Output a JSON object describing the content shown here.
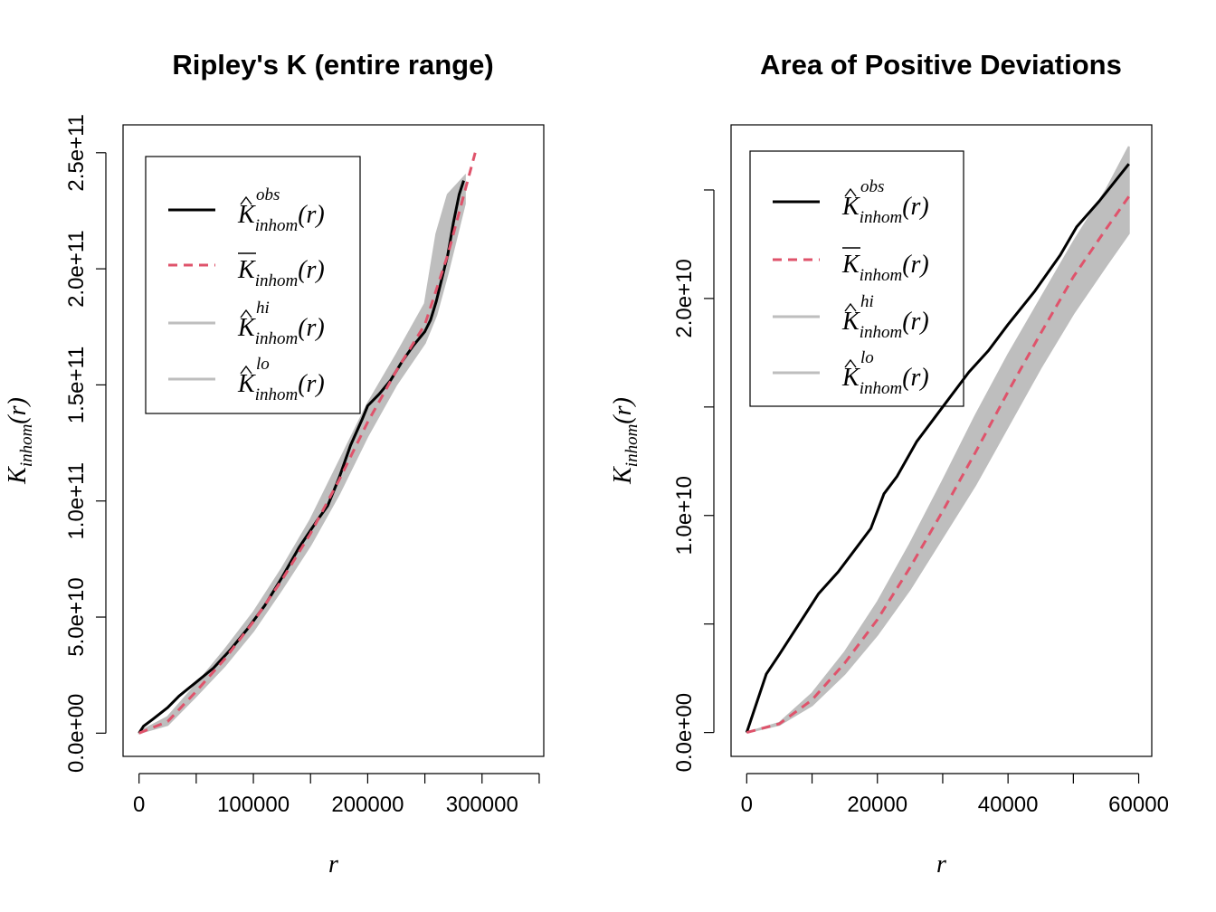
{
  "colors": {
    "obs": "#000000",
    "theo": "#DF536B",
    "band": "#BEBEBE"
  },
  "legend": {
    "items": [
      {
        "base": "K",
        "sup": "obs",
        "sub": "inhom",
        "arg": "(r)",
        "mark": "hat",
        "style": "solid",
        "color": "#000000"
      },
      {
        "base": "K",
        "sup": "",
        "sub": "inhom",
        "arg": "(r)",
        "mark": "bar",
        "style": "dashed",
        "color": "#DF536B"
      },
      {
        "base": "K",
        "sup": "hi",
        "sub": "inhom",
        "arg": "(r)",
        "mark": "hat",
        "style": "solid",
        "color": "#BEBEBE"
      },
      {
        "base": "K",
        "sup": "lo",
        "sub": "inhom",
        "arg": "(r)",
        "mark": "hat",
        "style": "solid",
        "color": "#BEBEBE"
      }
    ],
    "placement": "top-left"
  },
  "chart_data": [
    {
      "type": "line",
      "title": "Ripley's K (entire range)",
      "xlabel": "r",
      "ylabel": {
        "base": "K",
        "sub": "inhom",
        "arg": "(r)"
      },
      "xlim": [
        -14000,
        354000
      ],
      "ylim": [
        -10000000000,
        262000000000
      ],
      "xticks": [
        0,
        50000,
        100000,
        150000,
        200000,
        250000,
        300000,
        350000
      ],
      "xtick_labels": [
        "0",
        "100000",
        "200000",
        "300000"
      ],
      "xtick_label_values": [
        0,
        100000,
        200000,
        300000
      ],
      "yticks": [
        0,
        50000000000,
        100000000000,
        150000000000,
        200000000000,
        250000000000
      ],
      "ytick_labels": [
        "0.0e+00",
        "5.0e+10",
        "1.0e+11",
        "1.5e+11",
        "2.0e+11",
        "2.5e+11"
      ],
      "grid": false,
      "series": [
        {
          "name": "obs",
          "style": "solid",
          "x": [
            0,
            4000,
            12000,
            25000,
            35000,
            50000,
            65000,
            80000,
            95000,
            110000,
            125000,
            140000,
            155000,
            165000,
            175000,
            185000,
            195000,
            200000,
            210000,
            220000,
            230000,
            240000,
            250000,
            255000,
            260000,
            265000,
            270000,
            275000,
            280000,
            284000
          ],
          "y": [
            0,
            3000000000,
            6000000000,
            11000000000,
            16000000000,
            22000000000,
            28000000000,
            36000000000,
            45000000000,
            55000000000,
            67000000000,
            80000000000,
            91000000000,
            98000000000,
            110000000000,
            124000000000,
            135000000000,
            141000000000,
            146000000000,
            152000000000,
            160000000000,
            167000000000,
            173000000000,
            178000000000,
            186000000000,
            196000000000,
            206000000000,
            220000000000,
            232000000000,
            238000000000
          ]
        },
        {
          "name": "theo",
          "style": "dashed",
          "x": [
            0,
            25000,
            50000,
            75000,
            100000,
            125000,
            150000,
            175000,
            200000,
            225000,
            250000,
            270000,
            294000
          ],
          "y": [
            0,
            5000000000,
            18000000000,
            32000000000,
            48000000000,
            66000000000,
            86000000000,
            109000000000,
            134000000000,
            156000000000,
            176000000000,
            206000000000,
            250000000000
          ]
        },
        {
          "name": "hi",
          "style": "band",
          "x": [
            0,
            25000,
            50000,
            75000,
            100000,
            125000,
            150000,
            175000,
            200000,
            225000,
            250000,
            260000,
            270000,
            285000
          ],
          "y": [
            500000000,
            7000000000,
            21000000000,
            36000000000,
            52000000000,
            71000000000,
            92000000000,
            117000000000,
            142000000000,
            163000000000,
            185000000000,
            215000000000,
            232000000000,
            240000000000
          ]
        },
        {
          "name": "lo",
          "style": "band",
          "x": [
            0,
            25000,
            50000,
            75000,
            100000,
            125000,
            150000,
            175000,
            200000,
            225000,
            250000,
            260000,
            270000,
            285000
          ],
          "y": [
            0,
            3500000000,
            16000000000,
            29000000000,
            44000000000,
            62000000000,
            81000000000,
            103000000000,
            128000000000,
            150000000000,
            168000000000,
            180000000000,
            198000000000,
            228000000000
          ]
        }
      ]
    },
    {
      "type": "line",
      "title": "Area of Positive Deviations",
      "xlabel": "r",
      "ylabel": {
        "base": "K",
        "sub": "inhom",
        "arg": "(r)"
      },
      "xlim": [
        -2400,
        62000
      ],
      "ylim": [
        -1100000000,
        28000000000
      ],
      "xticks": [
        0,
        10000,
        20000,
        30000,
        40000,
        50000,
        60000
      ],
      "xtick_labels": [
        "0",
        "20000",
        "40000",
        "60000"
      ],
      "xtick_label_values": [
        0,
        20000,
        40000,
        60000
      ],
      "yticks": [
        0,
        5000000000,
        10000000000,
        15000000000,
        20000000000,
        25000000000
      ],
      "ytick_labels": [
        "0.0e+00",
        "",
        "1.0e+10",
        "",
        "2.0e+10",
        ""
      ],
      "grid": false,
      "series": [
        {
          "name": "obs",
          "style": "solid",
          "x": [
            0,
            3000,
            5000,
            8000,
            11000,
            14000,
            17000,
            19000,
            21000,
            23000,
            26000,
            30000,
            34000,
            37000,
            40000,
            44000,
            48000,
            50500,
            54000,
            58500
          ],
          "y": [
            0,
            2700000000,
            3600000000,
            5000000000,
            6400000000,
            7400000000,
            8600000000,
            9400000000,
            11000000000,
            11800000000,
            13400000000,
            15000000000,
            16600000000,
            17600000000,
            18800000000,
            20300000000,
            22000000000,
            23300000000,
            24500000000,
            26200000000
          ]
        },
        {
          "name": "theo",
          "style": "dashed",
          "x": [
            0,
            5000,
            10000,
            15000,
            20000,
            25000,
            30000,
            35000,
            40000,
            45000,
            50000,
            55000,
            58500
          ],
          "y": [
            0,
            400000000,
            1500000000,
            3200000000,
            5200000000,
            7600000000,
            10200000000,
            12900000000,
            15700000000,
            18400000000,
            21000000000,
            23200000000,
            24700000000
          ]
        },
        {
          "name": "hi",
          "style": "band",
          "x": [
            0,
            5000,
            10000,
            15000,
            20000,
            25000,
            30000,
            35000,
            40000,
            45000,
            50000,
            55000,
            58500
          ],
          "y": [
            0,
            450000000,
            1800000000,
            3700000000,
            6000000000,
            8700000000,
            11600000000,
            14600000000,
            17400000000,
            20000000000,
            22600000000,
            25000000000,
            27000000000
          ]
        },
        {
          "name": "lo",
          "style": "band",
          "x": [
            0,
            5000,
            10000,
            15000,
            20000,
            25000,
            30000,
            35000,
            40000,
            45000,
            50000,
            55000,
            58500
          ],
          "y": [
            0,
            350000000,
            1250000000,
            2700000000,
            4500000000,
            6600000000,
            9000000000,
            11400000000,
            14100000000,
            16800000000,
            19300000000,
            21500000000,
            23000000000
          ]
        }
      ]
    }
  ]
}
